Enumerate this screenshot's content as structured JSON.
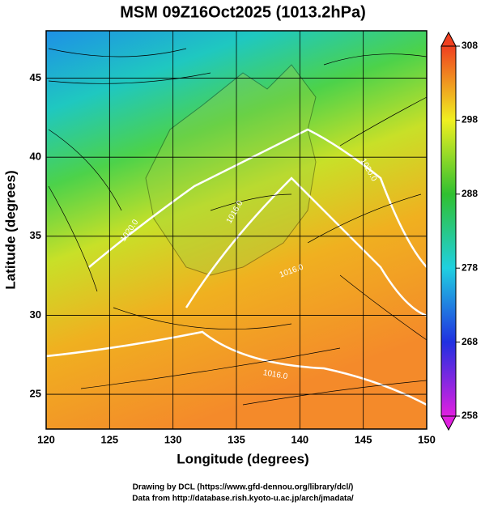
{
  "title": "MSM 09Z16Oct2025 (1013.2hPa)",
  "map": {
    "xlabel": "Longitude (degrees)",
    "ylabel": "Latitude  (degrees)",
    "xlim": [
      120,
      150
    ],
    "ylim": [
      22.8,
      48
    ],
    "xticks": [
      120,
      125,
      130,
      135,
      140,
      145,
      150
    ],
    "yticks": [
      25,
      30,
      35,
      40,
      45
    ],
    "contour_labels": [
      "1020.0",
      "1016.0",
      "1020.0",
      "1016.0",
      "1016.0"
    ]
  },
  "colorbar": {
    "lim": [
      258,
      308
    ],
    "ticks": [
      258,
      268,
      278,
      288,
      298,
      308
    ]
  },
  "credits": [
    "Drawing by DCL (https://www.gfd-dennou.org/library/dcl/)",
    "Data from http://database.rish.kyoto-u.ac.jp/arch/jmadata/"
  ]
}
